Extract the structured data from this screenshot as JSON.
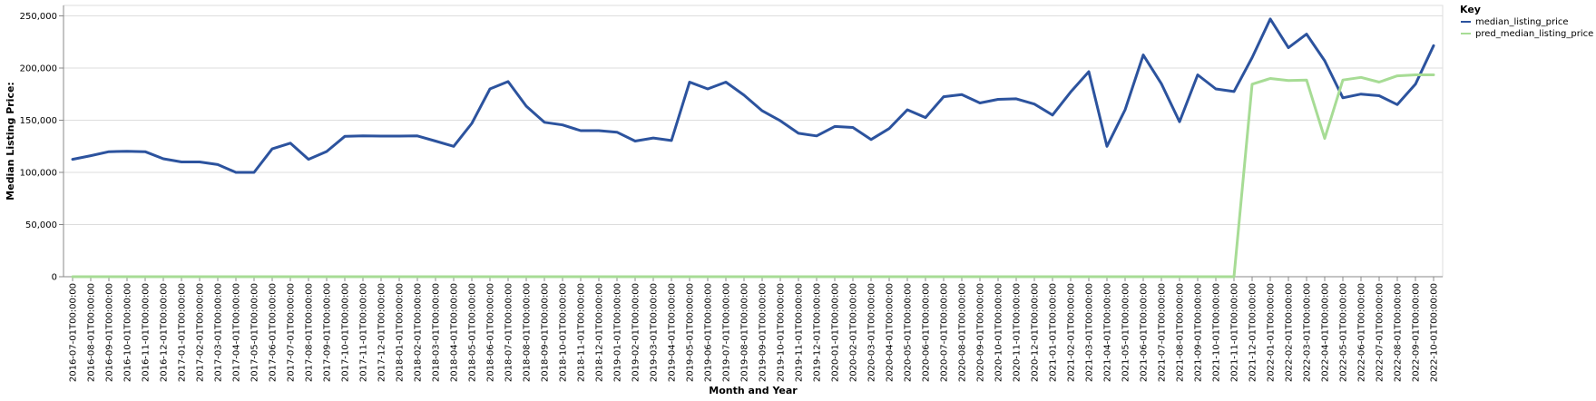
{
  "chart_data": {
    "type": "line",
    "title": "",
    "xlabel": "Month and Year",
    "ylabel": "Median Listing Price:",
    "ylim": [
      0,
      260000
    ],
    "yticks": [
      0,
      50000,
      100000,
      150000,
      200000,
      250000
    ],
    "ytick_labels": [
      "0",
      "50,000",
      "100,000",
      "150,000",
      "200,000",
      "250,000"
    ],
    "grid": true,
    "legend": {
      "title": "Key",
      "position": "top-right"
    },
    "x": [
      "2016-07-01T00:00:00",
      "2016-08-01T00:00:00",
      "2016-09-01T00:00:00",
      "2016-10-01T00:00:00",
      "2016-11-01T00:00:00",
      "2016-12-01T00:00:00",
      "2017-01-01T00:00:00",
      "2017-02-01T00:00:00",
      "2017-03-01T00:00:00",
      "2017-04-01T00:00:00",
      "2017-05-01T00:00:00",
      "2017-06-01T00:00:00",
      "2017-07-01T00:00:00",
      "2017-08-01T00:00:00",
      "2017-09-01T00:00:00",
      "2017-10-01T00:00:00",
      "2017-11-01T00:00:00",
      "2017-12-01T00:00:00",
      "2018-01-01T00:00:00",
      "2018-02-01T00:00:00",
      "2018-03-01T00:00:00",
      "2018-04-01T00:00:00",
      "2018-05-01T00:00:00",
      "2018-06-01T00:00:00",
      "2018-07-01T00:00:00",
      "2018-08-01T00:00:00",
      "2018-09-01T00:00:00",
      "2018-10-01T00:00:00",
      "2018-11-01T00:00:00",
      "2018-12-01T00:00:00",
      "2019-01-01T00:00:00",
      "2019-02-01T00:00:00",
      "2019-03-01T00:00:00",
      "2019-04-01T00:00:00",
      "2019-05-01T00:00:00",
      "2019-06-01T00:00:00",
      "2019-07-01T00:00:00",
      "2019-08-01T00:00:00",
      "2019-09-01T00:00:00",
      "2019-10-01T00:00:00",
      "2019-11-01T00:00:00",
      "2019-12-01T00:00:00",
      "2020-01-01T00:00:00",
      "2020-02-01T00:00:00",
      "2020-03-01T00:00:00",
      "2020-04-01T00:00:00",
      "2020-05-01T00:00:00",
      "2020-06-01T00:00:00",
      "2020-07-01T00:00:00",
      "2020-08-01T00:00:00",
      "2020-09-01T00:00:00",
      "2020-10-01T00:00:00",
      "2020-11-01T00:00:00",
      "2020-12-01T00:00:00",
      "2021-01-01T00:00:00",
      "2021-02-01T00:00:00",
      "2021-03-01T00:00:00",
      "2021-04-01T00:00:00",
      "2021-05-01T00:00:00",
      "2021-06-01T00:00:00",
      "2021-07-01T00:00:00",
      "2021-08-01T00:00:00",
      "2021-09-01T00:00:00",
      "2021-10-01T00:00:00",
      "2021-11-01T00:00:00",
      "2021-12-01T00:00:00",
      "2022-01-01T00:00:00",
      "2022-02-01T00:00:00",
      "2022-03-01T00:00:00",
      "2022-04-01T00:00:00",
      "2022-05-01T00:00:00",
      "2022-06-01T00:00:00",
      "2022-07-01T00:00:00",
      "2022-08-01T00:00:00",
      "2022-09-01T00:00:00",
      "2022-10-01T00:00:00"
    ],
    "series": [
      {
        "name": "median_listing_price",
        "color": "#2c539e",
        "values": [
          112500,
          116000,
          119800,
          120200,
          119800,
          113000,
          110000,
          110000,
          107500,
          100000,
          100000,
          122500,
          128000,
          112500,
          120000,
          134500,
          135000,
          134800,
          134800,
          135000,
          130000,
          125000,
          147000,
          180000,
          187000,
          163500,
          148000,
          145500,
          140000,
          140000,
          138500,
          130000,
          133000,
          130500,
          186500,
          180000,
          186500,
          174000,
          159000,
          149500,
          137500,
          135000,
          144000,
          143000,
          131500,
          142000,
          160000,
          152500,
          172500,
          174500,
          166500,
          170000,
          170500,
          165500,
          155000,
          177000,
          196500,
          125000,
          160000,
          212500,
          185000,
          148500,
          193500,
          180000,
          177500,
          210000,
          247000,
          219500,
          232500,
          207000,
          171500,
          175000,
          173500,
          165000,
          184500,
          221500
        ]
      },
      {
        "name": "pred_median_listing_price",
        "color": "#a7dc95",
        "values": [
          0,
          0,
          0,
          0,
          0,
          0,
          0,
          0,
          0,
          0,
          0,
          0,
          0,
          0,
          0,
          0,
          0,
          0,
          0,
          0,
          0,
          0,
          0,
          0,
          0,
          0,
          0,
          0,
          0,
          0,
          0,
          0,
          0,
          0,
          0,
          0,
          0,
          0,
          0,
          0,
          0,
          0,
          0,
          0,
          0,
          0,
          0,
          0,
          0,
          0,
          0,
          0,
          0,
          0,
          0,
          0,
          0,
          0,
          0,
          0,
          0,
          0,
          0,
          0,
          0,
          184500,
          190000,
          188000,
          188500,
          132500,
          188500,
          191000,
          186500,
          192500,
          193500,
          193500
        ]
      }
    ]
  }
}
